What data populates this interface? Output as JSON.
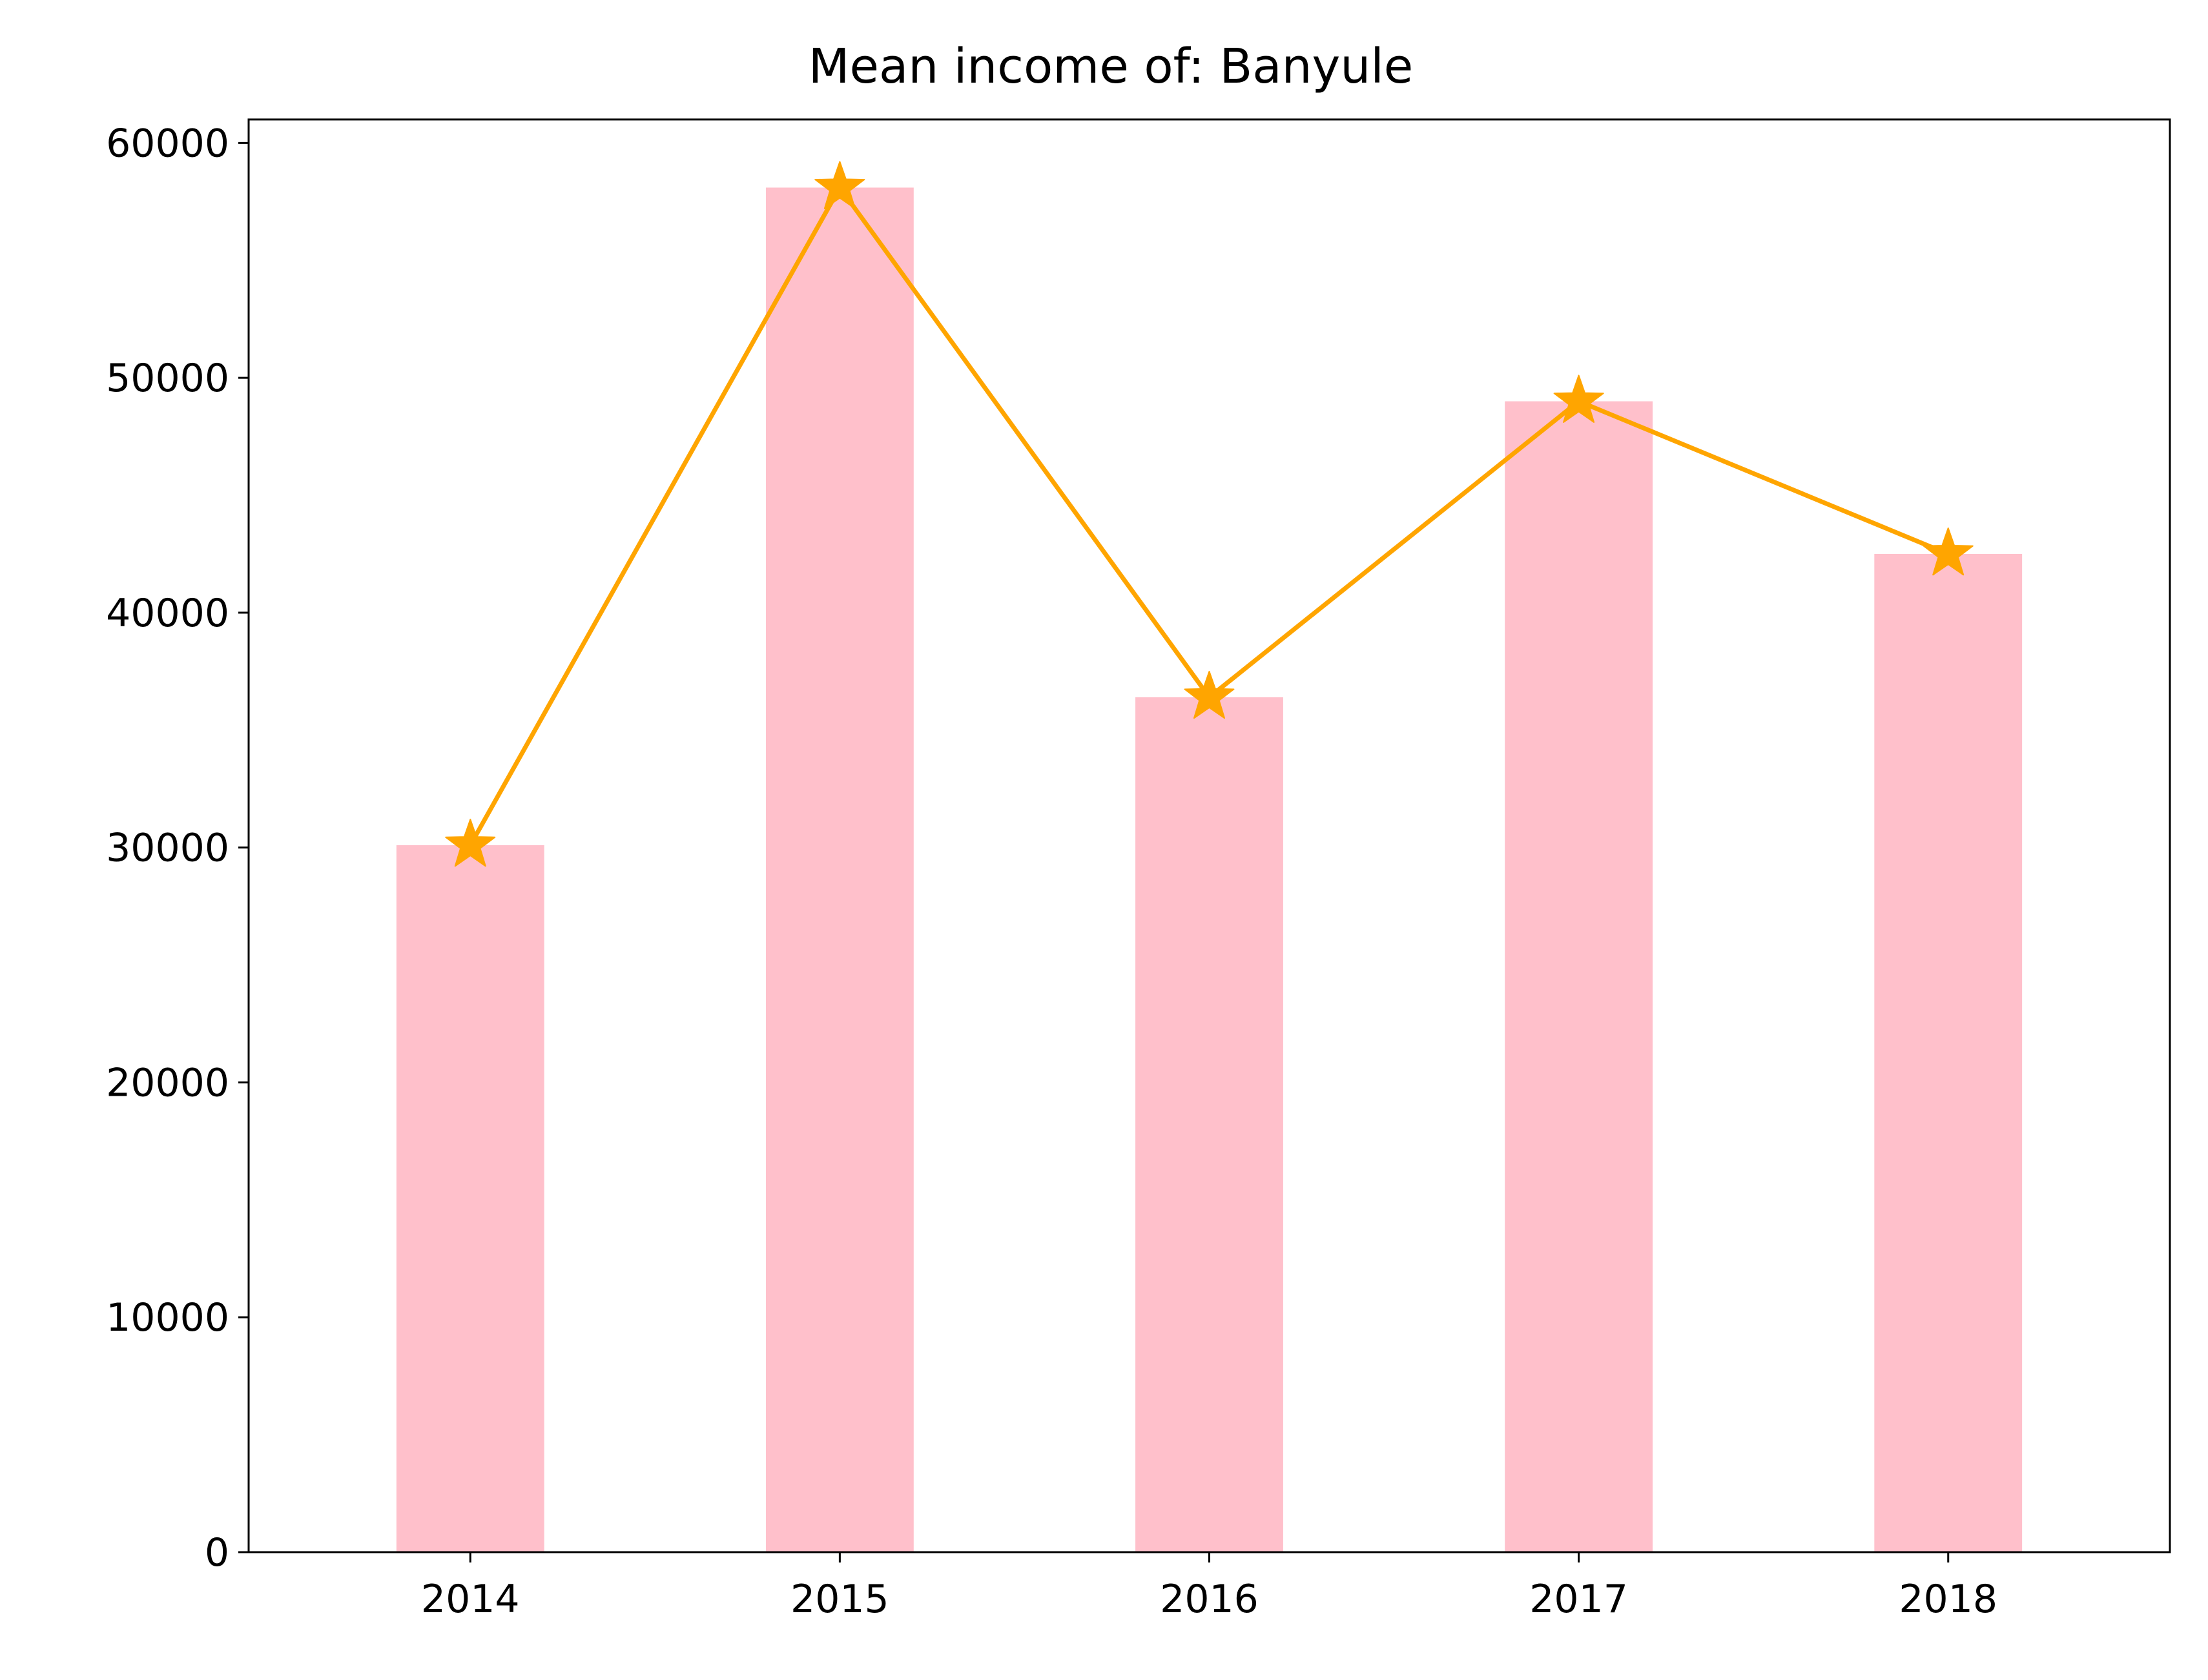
{
  "chart_data": {
    "type": "bar",
    "title": "Mean income of: Banyule",
    "xlabel": "",
    "ylabel": "",
    "categories": [
      "2014",
      "2015",
      "2016",
      "2017",
      "2018"
    ],
    "values": [
      30100,
      58100,
      36400,
      49000,
      42500
    ],
    "line_overlay": {
      "marker": "star",
      "values": [
        30100,
        58100,
        36400,
        49000,
        42500
      ]
    },
    "ylim": [
      0,
      61000
    ],
    "yticks": [
      0,
      10000,
      20000,
      30000,
      40000,
      50000,
      60000
    ],
    "ytick_labels": [
      "0",
      "10000",
      "20000",
      "30000",
      "40000",
      "50000",
      "60000"
    ],
    "grid": false,
    "legend": "none",
    "colors": {
      "bar": "#ffc0cb",
      "line": "#ffa500",
      "axis": "#000000"
    }
  }
}
